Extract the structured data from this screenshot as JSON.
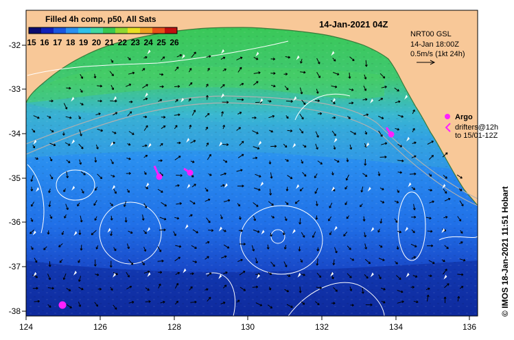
{
  "map_title": "14-Jan-2021 04Z",
  "colorbar": {
    "title": "Filled 4h comp, p50, All Sats",
    "labels": [
      "15",
      "16",
      "17",
      "18",
      "19",
      "20",
      "21",
      "22",
      "23",
      "24",
      "25",
      "26"
    ],
    "colors": [
      "#0a0a6e",
      "#1020b8",
      "#1a55e0",
      "#2a90f0",
      "#30c0e8",
      "#40d8a0",
      "#38c850",
      "#90d830",
      "#e8e020",
      "#f0a020",
      "#e85018",
      "#c01010"
    ]
  },
  "current_box": {
    "line1": "NRT00 GSL",
    "line2": "14-Jan 18:00Z",
    "line3": "0.5m/s (1kt 24h)"
  },
  "argo_legend": {
    "argo": "Argo",
    "drifters": "drifters@12h",
    "drifters_to": "to 15/01-12Z"
  },
  "credit": "© IMOS 18-Jan-2021 11:51 Hobart",
  "axes": {
    "x_ticks": [
      "124",
      "126",
      "128",
      "130",
      "132",
      "134",
      "136"
    ],
    "y_ticks": [
      "-32",
      "-33",
      "-34",
      "-35",
      "-36",
      "-37",
      "-38"
    ]
  },
  "colors": {
    "land": "#f8c898",
    "argo": "#ff20ff",
    "contour": "#ffffff"
  }
}
